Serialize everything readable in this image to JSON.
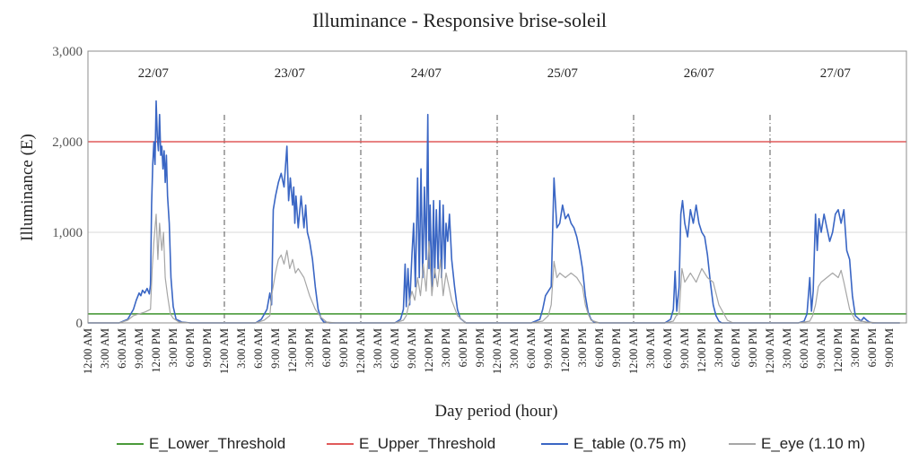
{
  "chart_data": {
    "type": "line",
    "title": "Illuminance - Responsive brise-soleil",
    "xlabel": "Day period (hour)",
    "ylabel": "Illuminance (E)",
    "ylim": [
      0,
      3000
    ],
    "yticks": [
      "0",
      "1,000",
      "2,000",
      "3,000"
    ],
    "ytick_values": [
      0,
      1000,
      2000,
      3000
    ],
    "grid": "horizontal",
    "legend_position": "bottom",
    "days": [
      "22/07",
      "23/07",
      "24/07",
      "25/07",
      "26/07",
      "27/07"
    ],
    "day_tick_labels": [
      "12:00 AM",
      "3:00 AM",
      "6:00 AM",
      "9:00 AM",
      "12:00 PM",
      "3:00 PM",
      "6:00 PM",
      "9:00 PM"
    ],
    "day_tick_hours": [
      0,
      3,
      6,
      9,
      12,
      15,
      18,
      21
    ],
    "x_unit": "hours since 22/07 12:00 AM",
    "thresholds": [
      {
        "name": "E_Lower_Threshold",
        "value": 100,
        "color": "#4a9a3a"
      },
      {
        "name": "E_Upper_Threshold",
        "value": 2000,
        "color": "#e05a5a"
      }
    ],
    "series": [
      {
        "name": "E_table (0.75 m)",
        "color": "#3a66c4",
        "x": [
          5.5,
          7,
          8,
          8.5,
          9,
          9.3,
          9.6,
          10,
          10.4,
          10.8,
          11,
          11.2,
          11.4,
          11.6,
          11.8,
          12,
          12.2,
          12.4,
          12.6,
          12.8,
          13,
          13.2,
          13.4,
          13.6,
          13.8,
          14,
          14.3,
          14.6,
          15,
          15.5,
          16.5,
          18,
          29.5,
          30.5,
          31.5,
          32,
          32.3,
          32.6,
          33,
          33.5,
          34,
          34.5,
          35,
          35.3,
          35.6,
          36,
          36.2,
          36.4,
          36.6,
          37,
          37.5,
          38,
          38.3,
          38.6,
          39,
          39.5,
          40,
          40.5,
          41,
          41.5,
          42.5,
          43.5,
          54,
          55,
          55.5,
          55.8,
          56,
          56.3,
          56.6,
          57,
          57.3,
          57.6,
          58,
          58.3,
          58.6,
          58.9,
          59.2,
          59.5,
          59.8,
          60,
          60.2,
          60.5,
          60.8,
          61,
          61.3,
          61.6,
          61.9,
          62.2,
          62.5,
          62.8,
          63,
          63.3,
          63.6,
          64,
          64.5,
          65,
          65.5,
          66.5,
          78,
          79.5,
          80,
          80.5,
          81,
          81.5,
          82,
          82.5,
          83,
          83.5,
          84,
          84.5,
          85,
          85.5,
          86,
          86.5,
          87,
          87.5,
          88,
          88.5,
          89,
          90,
          101.5,
          102.5,
          103,
          103.3,
          103.6,
          104,
          104.3,
          104.6,
          105,
          105.5,
          106,
          106.5,
          107,
          107.5,
          108,
          108.5,
          109,
          109.5,
          110,
          110.5,
          111,
          111.5,
          112.5,
          113.5,
          125,
          126,
          126.5,
          127,
          127.3,
          127.6,
          128,
          128.3,
          128.6,
          129,
          129.5,
          130,
          130.5,
          131,
          131.5,
          132,
          132.5,
          133,
          133.5,
          134,
          134.5,
          135,
          135.5,
          136,
          136.5,
          137,
          137.5,
          138,
          138.5,
          139
        ],
        "y": [
          0,
          40,
          150,
          250,
          330,
          300,
          360,
          330,
          380,
          320,
          420,
          1300,
          1750,
          2000,
          1750,
          2450,
          2050,
          1900,
          2300,
          1850,
          1950,
          1700,
          1900,
          1550,
          1850,
          1400,
          1100,
          500,
          180,
          40,
          10,
          0,
          0,
          40,
          150,
          330,
          200,
          1250,
          1400,
          1550,
          1650,
          1500,
          1950,
          1350,
          1600,
          1300,
          1500,
          1100,
          1400,
          1050,
          1400,
          1050,
          1300,
          1000,
          900,
          700,
          400,
          150,
          50,
          10,
          0,
          0,
          0,
          40,
          150,
          650,
          180,
          600,
          200,
          750,
          1100,
          400,
          1600,
          500,
          1700,
          500,
          1500,
          700,
          2300,
          600,
          1300,
          400,
          1350,
          500,
          1250,
          600,
          1350,
          500,
          1300,
          600,
          1100,
          900,
          1200,
          700,
          400,
          150,
          50,
          0,
          0,
          40,
          150,
          300,
          350,
          400,
          1600,
          1050,
          1100,
          1300,
          1150,
          1200,
          1100,
          1050,
          950,
          800,
          600,
          300,
          120,
          40,
          10,
          0,
          0,
          40,
          150,
          570,
          130,
          400,
          1200,
          1350,
          1100,
          950,
          1250,
          1100,
          1300,
          1100,
          1000,
          950,
          750,
          450,
          200,
          80,
          20,
          0,
          0,
          0,
          0,
          20,
          100,
          500,
          130,
          350,
          1200,
          800,
          1150,
          1000,
          1200,
          1050,
          900,
          1000,
          1200,
          1250,
          1100,
          1250,
          800,
          700,
          300,
          80,
          50,
          20,
          60,
          30,
          10,
          0,
          0,
          0
        ]
      },
      {
        "name": "E_eye (1.10 m)",
        "color": "#a6a6a6",
        "x": [
          5.5,
          7,
          8,
          9,
          10,
          11,
          11.3,
          11.6,
          12,
          12.3,
          12.6,
          13,
          13.3,
          13.6,
          14,
          14.5,
          15,
          16,
          18,
          29.5,
          31,
          32,
          32.3,
          33,
          33.5,
          34,
          34.5,
          35,
          35.5,
          36,
          36.5,
          37,
          38,
          39,
          40,
          41,
          42,
          43.5,
          54,
          55.5,
          56,
          57,
          57.5,
          58,
          58.5,
          59,
          59.5,
          60,
          60.5,
          61,
          61.5,
          62,
          62.5,
          63,
          63.5,
          64,
          65,
          66.5,
          78,
          80,
          81,
          81.5,
          82,
          82.5,
          83,
          84,
          85,
          86,
          87,
          87.5,
          88,
          88.5,
          90,
          101.5,
          103,
          103.5,
          104,
          104.5,
          105,
          105.5,
          106,
          107,
          108,
          109,
          110,
          111,
          112.5,
          113.5,
          125,
          127,
          127.5,
          128,
          128.5,
          129,
          130,
          131,
          132,
          132.5,
          133,
          133.5,
          134,
          135,
          137,
          139
        ],
        "y": [
          0,
          30,
          80,
          100,
          120,
          150,
          600,
          900,
          1200,
          700,
          1100,
          800,
          1000,
          500,
          300,
          100,
          50,
          10,
          0,
          0,
          30,
          80,
          300,
          550,
          700,
          750,
          650,
          800,
          600,
          700,
          550,
          600,
          500,
          300,
          150,
          60,
          10,
          0,
          0,
          30,
          80,
          350,
          250,
          500,
          300,
          650,
          350,
          900,
          300,
          600,
          400,
          700,
          300,
          550,
          400,
          250,
          80,
          0,
          0,
          20,
          80,
          200,
          680,
          500,
          550,
          500,
          550,
          500,
          400,
          200,
          100,
          30,
          0,
          0,
          20,
          80,
          100,
          600,
          450,
          500,
          550,
          450,
          600,
          500,
          450,
          200,
          30,
          0,
          0,
          20,
          80,
          200,
          400,
          450,
          500,
          550,
          500,
          580,
          450,
          300,
          150,
          30,
          10,
          0
        ]
      }
    ]
  }
}
